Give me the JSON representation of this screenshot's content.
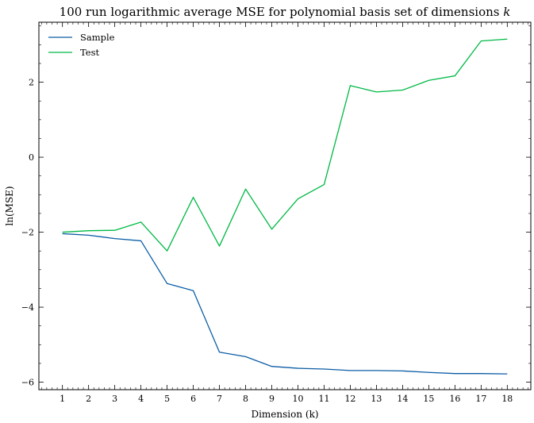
{
  "chart_data": {
    "type": "line",
    "title": "100 run logarithmic average MSE for polynomial basis set of dimensions k",
    "title_parts": {
      "text": "100 run logarithmic average MSE for polynomial basis set of dimensions ",
      "math_symbol": "k"
    },
    "xlabel": "Dimension (k)",
    "ylabel": "ln(MSE)",
    "x": [
      1,
      2,
      3,
      4,
      5,
      6,
      7,
      8,
      9,
      10,
      11,
      12,
      13,
      14,
      15,
      16,
      17,
      18
    ],
    "x_ticks": [
      1,
      2,
      3,
      4,
      5,
      6,
      7,
      8,
      9,
      10,
      11,
      12,
      13,
      14,
      15,
      16,
      17,
      18
    ],
    "xlim": [
      0.1,
      18.9
    ],
    "ylim": [
      -6.2,
      3.6
    ],
    "y_ticks": [
      -6,
      -4,
      -2,
      0,
      2
    ],
    "y_tick_labels": [
      "−6",
      "−4",
      "−2",
      "0",
      "2"
    ],
    "grid": false,
    "legend_position": "top-left",
    "series": [
      {
        "name": "Sample",
        "color": "#0C5DA5",
        "values": [
          -2.04,
          -2.08,
          -2.17,
          -2.23,
          -3.37,
          -3.56,
          -5.2,
          -5.32,
          -5.58,
          -5.63,
          -5.65,
          -5.69,
          -5.69,
          -5.7,
          -5.74,
          -5.77,
          -5.77,
          -5.78
        ]
      },
      {
        "name": "Test",
        "color": "#00B945",
        "values": [
          -2.0,
          -1.96,
          -1.95,
          -1.73,
          -2.5,
          -1.07,
          -2.37,
          -0.85,
          -1.92,
          -1.11,
          -0.73,
          1.91,
          1.74,
          1.79,
          2.05,
          2.17,
          3.1,
          3.15
        ]
      }
    ]
  }
}
